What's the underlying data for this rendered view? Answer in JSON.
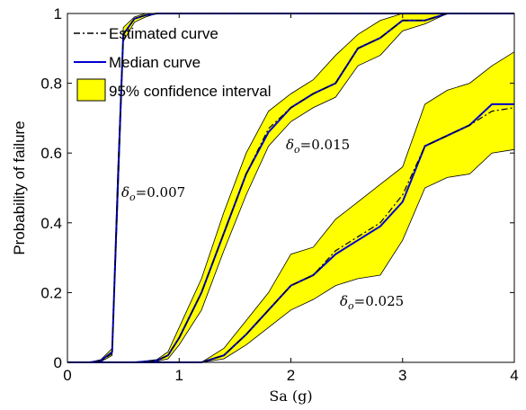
{
  "chart_data": {
    "type": "line",
    "xlabel": "Sa (g)",
    "ylabel": "Probability of failure",
    "xlim": [
      0,
      4
    ],
    "ylim": [
      0,
      1
    ],
    "x_ticks": [
      "0",
      "1",
      "2",
      "3",
      "4"
    ],
    "y_ticks": [
      "0",
      "0.2",
      "0.4",
      "0.6",
      "0.8",
      "1"
    ],
    "grid": false,
    "legend": {
      "placement": "top-left",
      "entries": [
        "Estimated curve",
        "Median curve",
        "95% confidence interval"
      ]
    },
    "colors": {
      "estimated": "#000000",
      "median": "#0000cc",
      "band_fill": "#ffff00",
      "band_edge": "#000000"
    },
    "groups": [
      {
        "annotation": {
          "symbol": "δ",
          "subscript": "o",
          "value": "=0.007"
        },
        "x": [
          0,
          0.2,
          0.3,
          0.4,
          0.45,
          0.5,
          0.6,
          0.7,
          0.8,
          1.0,
          1.5,
          2.0,
          2.5,
          3.0,
          3.5,
          4.0
        ],
        "median": [
          0,
          0,
          0.005,
          0.03,
          0.5,
          0.94,
          0.985,
          0.995,
          1,
          1,
          1,
          1,
          1,
          1,
          1,
          1
        ],
        "estimated": [
          0,
          0,
          0.005,
          0.025,
          0.5,
          0.94,
          0.985,
          0.995,
          1,
          1,
          1,
          1,
          1,
          1,
          1,
          1
        ],
        "lower": [
          0,
          0,
          0.002,
          0.02,
          0.45,
          0.92,
          0.975,
          0.99,
          1,
          1,
          1,
          1,
          1,
          1,
          1,
          1
        ],
        "upper": [
          0,
          0,
          0.008,
          0.04,
          0.55,
          0.96,
          0.99,
          1,
          1,
          1,
          1,
          1,
          1,
          1,
          1,
          1
        ]
      },
      {
        "annotation": {
          "symbol": "δ",
          "subscript": "o",
          "value": "=0.015"
        },
        "x": [
          0,
          0.6,
          0.8,
          0.9,
          1.0,
          1.2,
          1.4,
          1.6,
          1.8,
          2.0,
          2.2,
          2.4,
          2.6,
          2.8,
          3.0,
          3.2,
          3.4,
          4.0
        ],
        "median": [
          0,
          0,
          0.005,
          0.02,
          0.07,
          0.2,
          0.37,
          0.54,
          0.66,
          0.73,
          0.77,
          0.8,
          0.9,
          0.93,
          0.98,
          0.98,
          1,
          1
        ],
        "estimated": [
          0,
          0,
          0.005,
          0.02,
          0.07,
          0.2,
          0.37,
          0.54,
          0.67,
          0.73,
          0.77,
          0.8,
          0.9,
          0.93,
          0.98,
          0.98,
          1,
          1
        ],
        "lower": [
          0,
          0,
          0.003,
          0.01,
          0.05,
          0.15,
          0.32,
          0.48,
          0.62,
          0.69,
          0.73,
          0.76,
          0.85,
          0.88,
          0.95,
          0.97,
          1,
          1
        ],
        "upper": [
          0,
          0,
          0.008,
          0.03,
          0.1,
          0.24,
          0.43,
          0.6,
          0.72,
          0.77,
          0.81,
          0.88,
          0.94,
          0.98,
          1,
          1,
          1,
          1
        ]
      },
      {
        "annotation": {
          "symbol": "δ",
          "subscript": "o",
          "value": "=0.025"
        },
        "x": [
          0,
          1.2,
          1.4,
          1.6,
          1.8,
          2.0,
          2.2,
          2.4,
          2.6,
          2.8,
          3.0,
          3.2,
          3.4,
          3.6,
          3.8,
          4.0
        ],
        "median": [
          0,
          0,
          0.02,
          0.08,
          0.15,
          0.22,
          0.25,
          0.31,
          0.35,
          0.39,
          0.46,
          0.62,
          0.65,
          0.68,
          0.74,
          0.74
        ],
        "estimated": [
          0,
          0,
          0.02,
          0.08,
          0.15,
          0.22,
          0.25,
          0.32,
          0.36,
          0.4,
          0.48,
          0.62,
          0.65,
          0.68,
          0.72,
          0.73
        ],
        "lower": [
          0,
          0,
          0.01,
          0.05,
          0.1,
          0.15,
          0.18,
          0.22,
          0.24,
          0.25,
          0.35,
          0.5,
          0.53,
          0.54,
          0.6,
          0.61
        ],
        "upper": [
          0,
          0,
          0.04,
          0.12,
          0.2,
          0.31,
          0.33,
          0.41,
          0.46,
          0.51,
          0.56,
          0.74,
          0.78,
          0.8,
          0.85,
          0.89
        ]
      }
    ]
  }
}
